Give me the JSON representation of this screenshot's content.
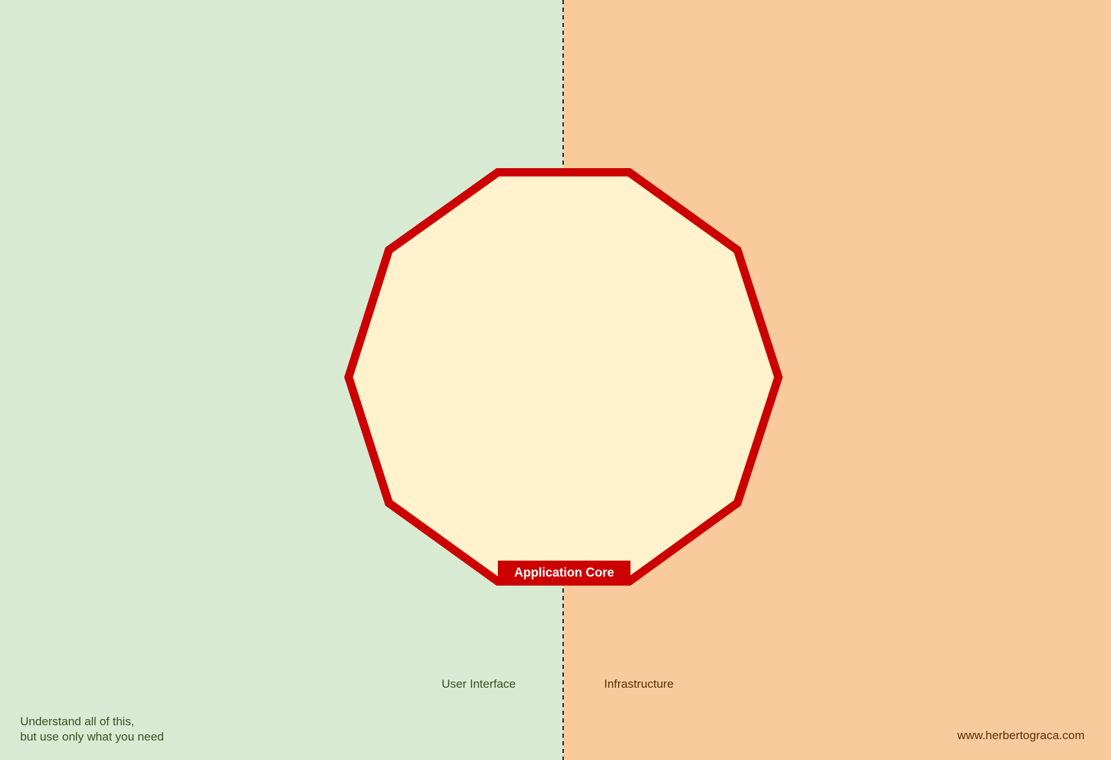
{
  "colors": {
    "user_interface_bg": "#d9ead3",
    "infrastructure_bg": "#f9cb9c",
    "core_fill": "#fff2cc",
    "core_border": "#cc0000"
  },
  "core": {
    "label": "Application Core",
    "shape": "decagon"
  },
  "regions": {
    "left_label": "User Interface",
    "right_label": "Infrastructure"
  },
  "footer": {
    "note_line1": "Understand all of this,",
    "note_line2": "but use only what you need",
    "website": "www.herbertograca.com"
  }
}
